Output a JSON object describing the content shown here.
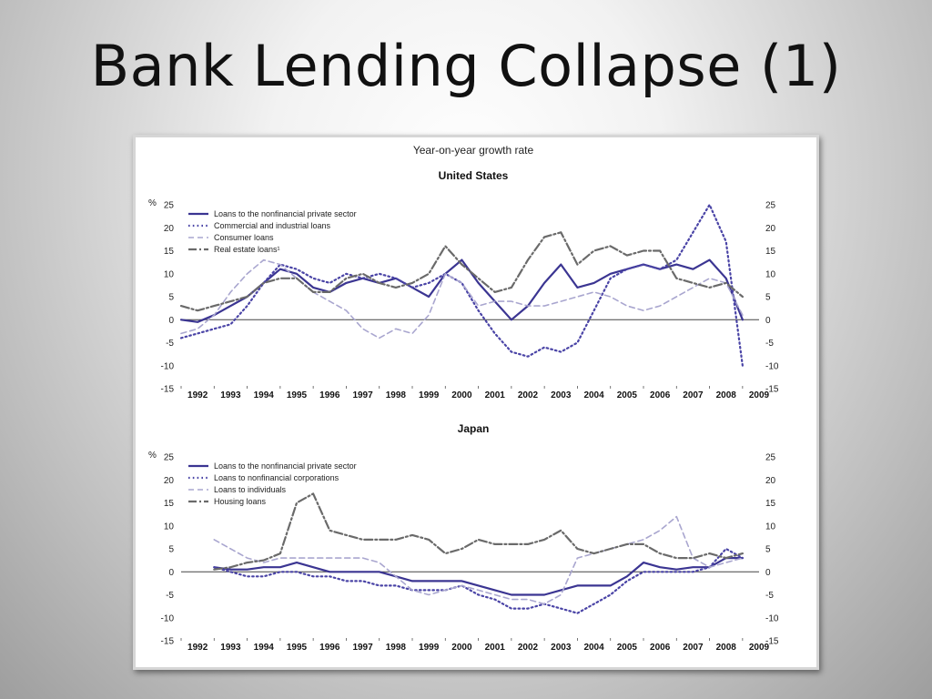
{
  "slide": {
    "title": "Bank Lending Collapse (1)"
  },
  "colors": {
    "solid": "#3b3592",
    "dotted": "#4a44a6",
    "dashed": "#a9a6cf",
    "dashdot": "#6a6a6a"
  },
  "chart_data": {
    "type": "line",
    "title": "Year-on-year growth rate",
    "unit_label": "%",
    "ylim": [
      -15,
      25
    ],
    "yticks": [
      25,
      20,
      15,
      10,
      5,
      0,
      -5,
      -10,
      -15
    ],
    "xlim": [
      1992,
      2009.5
    ],
    "xticks": [
      "1992",
      "1993",
      "1994",
      "1995",
      "1996",
      "1997",
      "1998",
      "1999",
      "2000",
      "2001",
      "2002",
      "2003",
      "2004",
      "2005",
      "2006",
      "2007",
      "2008",
      "2009"
    ],
    "panels": [
      {
        "title": "United States",
        "series": [
          {
            "name": "Loans to the nonfinancial private sector",
            "style": "solid",
            "x": [
              1992.0,
              1992.5,
              1993.0,
              1993.5,
              1994.0,
              1994.5,
              1995.0,
              1995.5,
              1996.0,
              1996.5,
              1997.0,
              1997.5,
              1998.0,
              1998.5,
              1999.0,
              1999.5,
              2000.0,
              2000.5,
              2001.0,
              2001.5,
              2002.0,
              2002.5,
              2003.0,
              2003.5,
              2004.0,
              2004.5,
              2005.0,
              2005.5,
              2006.0,
              2006.5,
              2007.0,
              2007.5,
              2008.0,
              2008.5,
              2009.0
            ],
            "y": [
              0,
              -0.5,
              1,
              3,
              5,
              8,
              11,
              10,
              7,
              6,
              8,
              9,
              8,
              9,
              7,
              5,
              10,
              13,
              8,
              4,
              0,
              3,
              8,
              12,
              7,
              8,
              10,
              11,
              12,
              11,
              12,
              11,
              13,
              9,
              0
            ]
          },
          {
            "name": "Commercial and industrial loans",
            "style": "dotted",
            "x": [
              1992.0,
              1992.5,
              1993.0,
              1993.5,
              1994.0,
              1994.5,
              1995.0,
              1995.5,
              1996.0,
              1996.5,
              1997.0,
              1997.5,
              1998.0,
              1998.5,
              1999.0,
              1999.5,
              2000.0,
              2000.5,
              2001.0,
              2001.5,
              2002.0,
              2002.5,
              2003.0,
              2003.5,
              2004.0,
              2004.5,
              2005.0,
              2005.5,
              2006.0,
              2006.5,
              2007.0,
              2007.5,
              2008.0,
              2008.5,
              2009.0
            ],
            "y": [
              -4,
              -3,
              -2,
              -1,
              3,
              8,
              12,
              11,
              9,
              8,
              10,
              9,
              10,
              9,
              7,
              8,
              10,
              8,
              2,
              -3,
              -7,
              -8,
              -6,
              -7,
              -5,
              2,
              9,
              11,
              12,
              11,
              13,
              19,
              25,
              17,
              -10
            ]
          },
          {
            "name": "Consumer loans",
            "style": "dashed",
            "x": [
              1992.0,
              1992.5,
              1993.0,
              1993.5,
              1994.0,
              1994.5,
              1995.0,
              1995.5,
              1996.0,
              1996.5,
              1997.0,
              1997.5,
              1998.0,
              1998.5,
              1999.0,
              1999.5,
              2000.0,
              2000.5,
              2001.0,
              2001.5,
              2002.0,
              2002.5,
              2003.0,
              2003.5,
              2004.0,
              2004.5,
              2005.0,
              2005.5,
              2006.0,
              2006.5,
              2007.0,
              2007.5,
              2008.0,
              2008.5,
              2009.0
            ],
            "y": [
              -3,
              -2,
              1,
              6,
              10,
              13,
              12,
              9,
              6,
              4,
              2,
              -2,
              -4,
              -2,
              -3,
              1,
              10,
              8,
              3,
              4,
              4,
              3,
              3,
              4,
              5,
              6,
              5,
              3,
              2,
              3,
              5,
              7,
              9,
              8,
              1
            ]
          },
          {
            "name": "Real estate loans¹",
            "style": "dashdot",
            "x": [
              1992.0,
              1992.5,
              1993.0,
              1993.5,
              1994.0,
              1994.5,
              1995.0,
              1995.5,
              1996.0,
              1996.5,
              1997.0,
              1997.5,
              1998.0,
              1998.5,
              1999.0,
              1999.5,
              2000.0,
              2000.5,
              2001.0,
              2001.5,
              2002.0,
              2002.5,
              2003.0,
              2003.5,
              2004.0,
              2004.5,
              2005.0,
              2005.5,
              2006.0,
              2006.5,
              2007.0,
              2007.5,
              2008.0,
              2008.5,
              2009.0
            ],
            "y": [
              3,
              2,
              3,
              4,
              5,
              8,
              9,
              9,
              6,
              6,
              9,
              10,
              8,
              7,
              8,
              10,
              16,
              12,
              9,
              6,
              7,
              13,
              18,
              19,
              12,
              15,
              16,
              14,
              15,
              15,
              9,
              8,
              7,
              8,
              5
            ]
          }
        ]
      },
      {
        "title": "Japan",
        "series": [
          {
            "name": "Loans to the nonfinancial private sector",
            "style": "solid",
            "x": [
              1993.0,
              1993.5,
              1994.0,
              1994.5,
              1995.0,
              1995.5,
              1996.0,
              1996.5,
              1997.0,
              1997.5,
              1998.0,
              1998.5,
              1999.0,
              1999.5,
              2000.0,
              2000.5,
              2001.0,
              2001.5,
              2002.0,
              2002.5,
              2003.0,
              2003.5,
              2004.0,
              2004.5,
              2005.0,
              2005.5,
              2006.0,
              2006.5,
              2007.0,
              2007.5,
              2008.0,
              2008.5,
              2009.0
            ],
            "y": [
              1,
              0.5,
              0.5,
              1,
              1,
              2,
              1,
              0,
              0,
              0,
              0,
              -1,
              -2,
              -2,
              -2,
              -2,
              -3,
              -4,
              -5,
              -5,
              -5,
              -4,
              -3,
              -3,
              -3,
              -1,
              2,
              1,
              0.5,
              1,
              1,
              3,
              3
            ]
          },
          {
            "name": "Loans to nonfinancial corporations",
            "style": "dotted",
            "x": [
              1993.0,
              1993.5,
              1994.0,
              1994.5,
              1995.0,
              1995.5,
              1996.0,
              1996.5,
              1997.0,
              1997.5,
              1998.0,
              1998.5,
              1999.0,
              1999.5,
              2000.0,
              2000.5,
              2001.0,
              2001.5,
              2002.0,
              2002.5,
              2003.0,
              2003.5,
              2004.0,
              2004.5,
              2005.0,
              2005.5,
              2006.0,
              2006.5,
              2007.0,
              2007.5,
              2008.0,
              2008.5,
              2009.0
            ],
            "y": [
              1,
              0,
              -1,
              -1,
              0,
              0,
              -1,
              -1,
              -2,
              -2,
              -3,
              -3,
              -4,
              -4,
              -4,
              -3,
              -5,
              -6,
              -8,
              -8,
              -7,
              -8,
              -9,
              -7,
              -5,
              -2,
              0,
              0,
              0,
              0,
              1,
              5,
              3
            ]
          },
          {
            "name": "Loans to individuals",
            "style": "dashed",
            "x": [
              1993.0,
              1993.5,
              1994.0,
              1994.5,
              1995.0,
              1995.5,
              1996.0,
              1996.5,
              1997.0,
              1997.5,
              1998.0,
              1998.5,
              1999.0,
              1999.5,
              2000.0,
              2000.5,
              2001.0,
              2001.5,
              2002.0,
              2002.5,
              2003.0,
              2003.5,
              2004.0,
              2004.5,
              2005.0,
              2005.5,
              2006.0,
              2006.5,
              2007.0,
              2007.5,
              2008.0,
              2008.5,
              2009.0
            ],
            "y": [
              7,
              5,
              3,
              2,
              3,
              3,
              3,
              3,
              3,
              3,
              2,
              -1,
              -4,
              -5,
              -4,
              -3,
              -4,
              -5,
              -6,
              -6,
              -7,
              -5,
              3,
              4,
              5,
              6,
              7,
              9,
              12,
              3,
              1,
              2,
              3
            ]
          },
          {
            "name": "Housing loans",
            "style": "dashdot",
            "x": [
              1993.0,
              1993.5,
              1994.0,
              1994.5,
              1995.0,
              1995.5,
              1996.0,
              1996.5,
              1997.0,
              1997.5,
              1998.0,
              1998.5,
              1999.0,
              1999.5,
              2000.0,
              2000.5,
              2001.0,
              2001.5,
              2002.0,
              2002.5,
              2003.0,
              2003.5,
              2004.0,
              2004.5,
              2005.0,
              2005.5,
              2006.0,
              2006.5,
              2007.0,
              2007.5,
              2008.0,
              2008.5,
              2009.0
            ],
            "y": [
              0.5,
              1,
              2,
              2.5,
              4,
              15,
              17,
              9,
              8,
              7,
              7,
              7,
              8,
              7,
              4,
              5,
              7,
              6,
              6,
              6,
              7,
              9,
              5,
              4,
              5,
              6,
              6,
              4,
              3,
              3,
              4,
              3,
              4
            ]
          }
        ]
      }
    ]
  }
}
